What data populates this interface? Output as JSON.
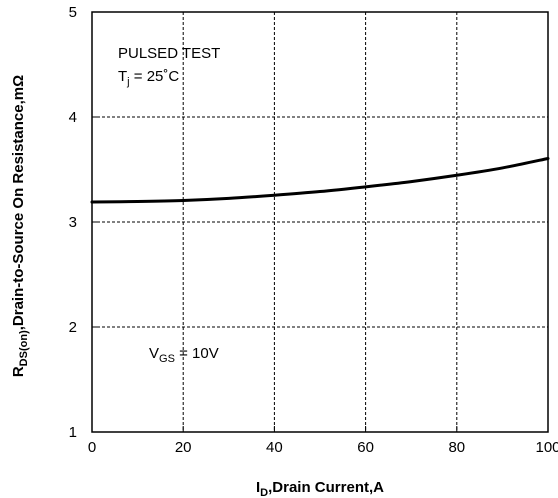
{
  "chart_data": {
    "type": "line",
    "xlabel": {
      "main": "I",
      "sub": "D",
      "rest": ",Drain Current,A"
    },
    "ylabel": {
      "main": "R",
      "sub": "DS(on)",
      "rest": ",Drain-to-Source On Resistance,mΩ"
    },
    "xlim": [
      0,
      100
    ],
    "ylim": [
      1,
      5
    ],
    "xticks": [
      0,
      20,
      40,
      60,
      80,
      100
    ],
    "yticks": [
      1,
      2,
      3,
      4,
      5
    ],
    "grid": true,
    "annotations": {
      "test": "PULSED TEST",
      "tj": {
        "main": "T",
        "sub": "j",
        "rest": " = 25˚C"
      },
      "vgs": {
        "main": "V",
        "sub": "GS",
        "rest": " = 10V"
      }
    },
    "series": [
      {
        "x": [
          0,
          10,
          20,
          30,
          40,
          50,
          60,
          70,
          80,
          90,
          100
        ],
        "y": [
          3.19,
          3.195,
          3.205,
          3.225,
          3.255,
          3.29,
          3.335,
          3.385,
          3.445,
          3.515,
          3.605
        ]
      }
    ]
  }
}
